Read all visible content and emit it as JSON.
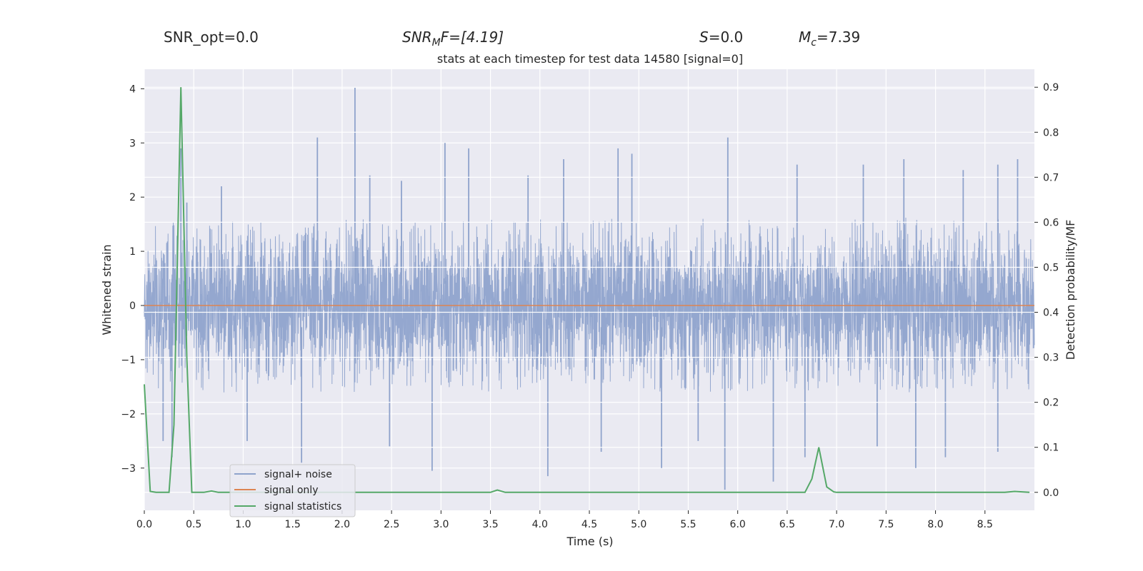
{
  "header": {
    "snr_opt": "SNR_opt=0.0",
    "snr_mf_base": "SNR",
    "snr_mf_sub": "M",
    "snr_mf_rest": "F=[4.19]",
    "s_base": "S",
    "s_rest": "=0.0",
    "mc_base": "M",
    "mc_sub": "c",
    "mc_rest": "=7.39"
  },
  "chart_data": {
    "type": "line",
    "title": "stats at each timestep for test data 14580 [signal=0]",
    "xlabel": "Time (s)",
    "ylabel": "Whitened strain",
    "y2label": "Detection probability/MF",
    "xlim": [
      0.0,
      9.0
    ],
    "ylim": [
      -3.78,
      4.36
    ],
    "y2lim": [
      -0.04,
      0.94
    ],
    "xticks": [
      "0.0",
      "0.5",
      "1.0",
      "1.5",
      "2.0",
      "2.5",
      "3.0",
      "3.5",
      "4.0",
      "4.5",
      "5.0",
      "5.5",
      "6.0",
      "6.5",
      "7.0",
      "7.5",
      "8.0",
      "8.5"
    ],
    "yticks": [
      "4",
      "3",
      "2",
      "1",
      "0",
      "−1",
      "−2",
      "−3"
    ],
    "y2ticks": [
      "0.9",
      "0.8",
      "0.7",
      "0.6",
      "0.5",
      "0.4",
      "0.3",
      "0.2",
      "0.1",
      "0.0"
    ],
    "grid": true,
    "legend_position": "lower-left",
    "colors": {
      "noise": "#8fa3cc",
      "signal_only": "#dd8452",
      "statistics": "#55a868",
      "background": "#eaeaf2",
      "grid": "#ffffff"
    },
    "series": [
      {
        "name": "signal+ noise",
        "axis": "left",
        "note_peaks": {
          "x": [
            0.37,
            0.43,
            0.78,
            1.75,
            2.13,
            2.28,
            2.6,
            3.04,
            3.28,
            3.88,
            4.24,
            4.79,
            4.93,
            5.9,
            6.6,
            7.27,
            7.68,
            8.28,
            8.63,
            8.83
          ],
          "y": [
            2.9,
            1.9,
            2.2,
            3.1,
            4.02,
            2.4,
            2.3,
            3.0,
            2.9,
            2.4,
            2.7,
            2.9,
            2.8,
            3.1,
            2.6,
            2.6,
            2.7,
            2.5,
            2.6,
            2.7
          ]
        },
        "note_troughs": {
          "x": [
            0.19,
            0.28,
            1.04,
            1.59,
            2.48,
            2.91,
            4.08,
            4.62,
            5.23,
            5.6,
            5.87,
            6.36,
            6.68,
            7.41,
            7.8,
            8.1,
            8.63
          ],
          "y": [
            -2.5,
            -2.8,
            -2.5,
            -2.9,
            -2.6,
            -3.05,
            -3.15,
            -2.7,
            -3.0,
            -2.5,
            -3.4,
            -3.25,
            -2.8,
            -2.6,
            -3.0,
            -2.8,
            -2.7
          ]
        }
      },
      {
        "name": "signal only",
        "axis": "left",
        "x": [
          0.0,
          9.0
        ],
        "y": [
          0.0,
          0.0
        ]
      },
      {
        "name": "signal statistics",
        "axis": "right",
        "x": [
          0.0,
          0.06,
          0.12,
          0.25,
          0.3,
          0.37,
          0.43,
          0.48,
          0.6,
          0.68,
          0.75,
          1.0,
          2.0,
          3.0,
          3.4,
          3.5,
          3.57,
          3.65,
          4.0,
          5.0,
          6.0,
          6.6,
          6.68,
          6.75,
          6.82,
          6.9,
          6.97,
          7.0,
          8.0,
          8.7,
          8.8,
          8.95
        ],
        "y": [
          0.24,
          0.002,
          0.0,
          0.0,
          0.15,
          0.9,
          0.3,
          0.0,
          0.0,
          0.003,
          0.0,
          0.0,
          0.0,
          0.0,
          0.0,
          0.0,
          0.005,
          0.0,
          0.0,
          0.0,
          0.0,
          0.0,
          0.0,
          0.03,
          0.1,
          0.012,
          0.001,
          0.0,
          0.0,
          0.0,
          0.002,
          0.0
        ]
      }
    ]
  }
}
